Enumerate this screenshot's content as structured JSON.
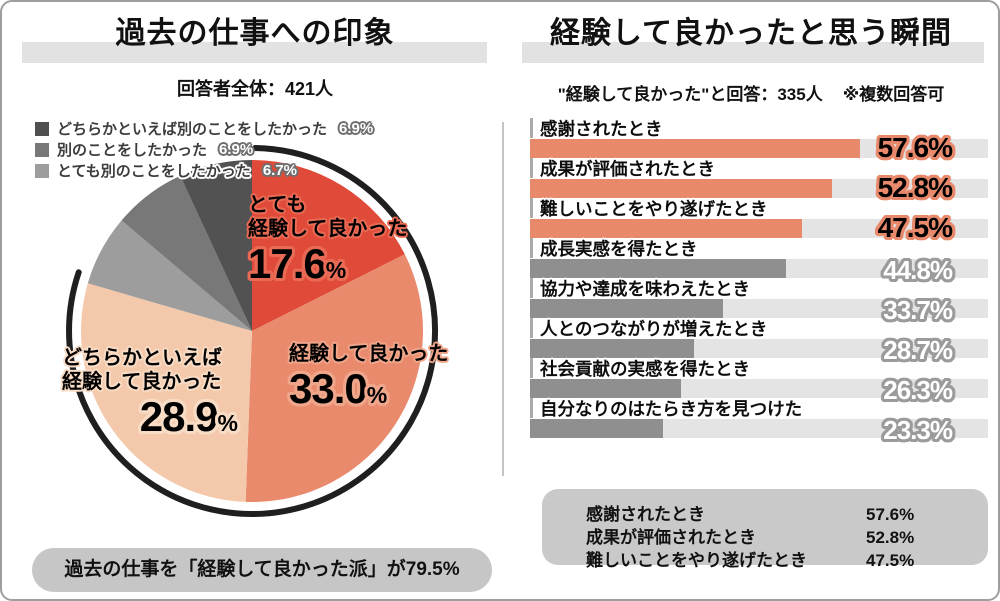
{
  "left": {
    "title": "過去の仕事への印象",
    "subtitle": "回答者全体：421人",
    "legend": [
      {
        "label": "どちらかといえば別のことをしたかった",
        "value": 6.9,
        "color": "#4f4f4f"
      },
      {
        "label": "別のことをしたかった",
        "value": 6.9,
        "color": "#787878"
      },
      {
        "label": "とても別のことをしたかった",
        "value": 6.7,
        "color": "#9d9d9d"
      }
    ],
    "callout": "過去の仕事を「経験して良かった派」が79.5%"
  },
  "right": {
    "title": "経験して良かったと思う瞬間",
    "subtitle": "\"経験して良かった\"と回答：335人",
    "note": "※複数回答可",
    "summary": [
      {
        "label": "感謝されたとき",
        "value": "57.6%"
      },
      {
        "label": "成果が評価されたとき",
        "value": "52.8%"
      },
      {
        "label": "難しいことをやり遂げたとき",
        "value": "47.5%"
      }
    ]
  },
  "chart_data": [
    {
      "type": "pie",
      "title": "過去の仕事への印象",
      "total_label": "回答者全体：421人",
      "slices": [
        {
          "label": "とても経験して良かった",
          "label_lines": [
            "とても",
            "経験して良かった"
          ],
          "value": 17.6,
          "color": "#e04a38",
          "halo": "#e96a55",
          "show_label_on_pie": true
        },
        {
          "label": "経験して良かった",
          "label_lines": [
            "経験して良かった"
          ],
          "value": 33.0,
          "color": "#e98a6d",
          "halo": "#efa68b",
          "show_label_on_pie": true
        },
        {
          "label": "どちらかといえば経験して良かった",
          "label_lines": [
            "どちらかといえば",
            "経験して良かった"
          ],
          "value": 28.9,
          "color": "#f4c9ab",
          "halo": "#f8dcc5",
          "show_label_on_pie": true
        },
        {
          "label": "とても別のことをしたかった",
          "value": 6.7,
          "color": "#9d9d9d",
          "show_label_on_pie": false
        },
        {
          "label": "別のことをしたかった",
          "value": 6.9,
          "color": "#787878",
          "show_label_on_pie": false
        },
        {
          "label": "どちらかといえば別のことをしたかった",
          "value": 6.9,
          "color": "#525252",
          "show_label_on_pie": false
        }
      ],
      "highlight_arc": {
        "share": 79.5,
        "color": "#1f1f1f"
      },
      "annotation": "過去の仕事を「経験して良かった派」が79.5%"
    },
    {
      "type": "bar",
      "orientation": "horizontal",
      "title": "経験して良かったと思う瞬間",
      "respondents_label": "\"経験して良かった\"と回答：335人",
      "note": "※複数回答可",
      "categories": [
        "感謝されたとき",
        "成果が評価されたとき",
        "難しいことをやり遂げたとき",
        "成長実感を得たとき",
        "協力や達成を味わえたとき",
        "人とのつながりが増えたとき",
        "社会貢献の実感を得たとき",
        "自分なりのはたらき方を見つけた"
      ],
      "values": [
        57.6,
        52.8,
        47.5,
        44.8,
        33.7,
        28.7,
        26.3,
        23.3
      ],
      "xlim": [
        0,
        80
      ],
      "highlight_count": 3,
      "highlight_color": "#e8896c",
      "bar_color": "#8f8f8f",
      "track_color": "#e4e4e4"
    }
  ]
}
